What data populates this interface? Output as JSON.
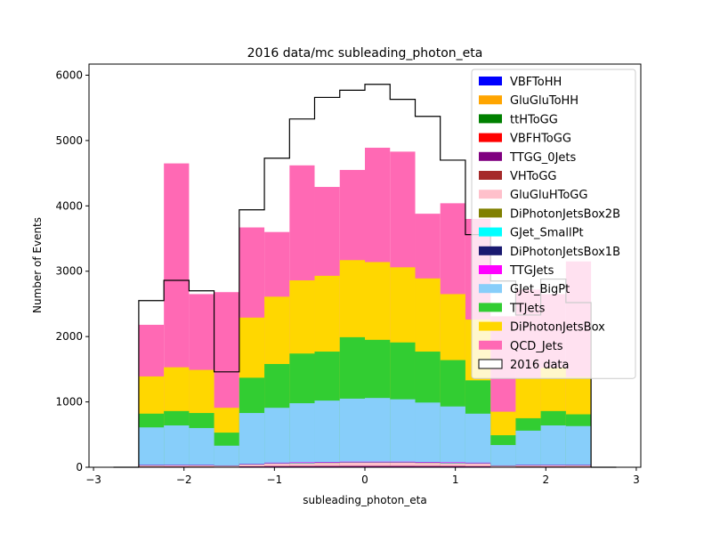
{
  "chart_data": {
    "type": "bar",
    "title": "2016 data/mc subleading_photon_eta",
    "xlabel": "subleading_photon_eta",
    "ylabel": "Number of Events",
    "xlim": [
      -3.05,
      3.05
    ],
    "ylim": [
      0,
      6170
    ],
    "x_ticks": [
      -3,
      -2,
      -1,
      0,
      1,
      2,
      3
    ],
    "x_tick_labels": [
      "−3",
      "−2",
      "−1",
      "0",
      "1",
      "2",
      "3"
    ],
    "y_ticks": [
      0,
      1000,
      2000,
      3000,
      4000,
      5000,
      6000
    ],
    "y_tick_labels": [
      "0",
      "1000",
      "2000",
      "3000",
      "4000",
      "5000",
      "6000"
    ],
    "bin_edges": [
      -2.5,
      -2.222,
      -1.944,
      -1.667,
      -1.389,
      -1.111,
      -0.833,
      -0.556,
      -0.278,
      0.0,
      0.278,
      0.556,
      0.833,
      1.111,
      1.389,
      1.667,
      1.944,
      2.222,
      2.5
    ],
    "legend_position": "upper right",
    "stacked_series_cumulative": true,
    "series": [
      {
        "name": "VBFToHH",
        "color": "#0000ff",
        "values": [
          0,
          0,
          0,
          0,
          0,
          0,
          0,
          0,
          0,
          0,
          0,
          0,
          0,
          0,
          0,
          0,
          0,
          0
        ]
      },
      {
        "name": "GluGluToHH",
        "color": "#ffa500",
        "values": [
          0,
          0,
          0,
          0,
          0,
          0,
          0,
          0,
          0,
          0,
          0,
          0,
          0,
          0,
          0,
          0,
          0,
          0
        ]
      },
      {
        "name": "ttHToGG",
        "color": "#008000",
        "values": [
          2,
          2,
          2,
          1,
          2,
          3,
          3,
          3,
          3,
          3,
          3,
          3,
          3,
          2,
          1,
          2,
          2,
          2
        ]
      },
      {
        "name": "VBFHToGG",
        "color": "#ff0000",
        "values": [
          3,
          3,
          3,
          2,
          3,
          4,
          4,
          4,
          4,
          4,
          4,
          4,
          4,
          3,
          2,
          3,
          3,
          3
        ]
      },
      {
        "name": "TTGG_0Jets",
        "color": "#800080",
        "values": [
          8,
          9,
          8,
          6,
          12,
          15,
          16,
          17,
          18,
          18,
          18,
          17,
          16,
          14,
          6,
          9,
          9,
          8
        ]
      },
      {
        "name": "VHToGG",
        "color": "#a52a2a",
        "values": [
          10,
          11,
          10,
          7,
          14,
          17,
          18,
          19,
          20,
          20,
          20,
          19,
          18,
          16,
          7,
          11,
          11,
          10
        ]
      },
      {
        "name": "GluGluHToGG",
        "color": "#ffc0cb",
        "values": [
          25,
          27,
          26,
          18,
          40,
          55,
          60,
          65,
          70,
          70,
          70,
          65,
          60,
          55,
          18,
          26,
          27,
          25
        ]
      },
      {
        "name": "DiPhotonJetsBox2B",
        "color": "#808000",
        "values": [
          26,
          28,
          27,
          19,
          41,
          56,
          61,
          66,
          71,
          71,
          71,
          66,
          61,
          56,
          19,
          27,
          28,
          26
        ]
      },
      {
        "name": "GJet_SmallPt",
        "color": "#00ffff",
        "values": [
          30,
          32,
          30,
          22,
          44,
          60,
          65,
          70,
          75,
          75,
          75,
          70,
          65,
          60,
          22,
          30,
          32,
          30
        ]
      },
      {
        "name": "DiPhotonJetsBox1B",
        "color": "#191970",
        "values": [
          32,
          34,
          32,
          24,
          46,
          62,
          67,
          72,
          77,
          77,
          77,
          72,
          67,
          62,
          24,
          32,
          34,
          32
        ]
      },
      {
        "name": "TTGJets",
        "color": "#ff00ff",
        "values": [
          38,
          40,
          38,
          28,
          52,
          70,
          75,
          80,
          85,
          85,
          85,
          80,
          75,
          70,
          28,
          38,
          40,
          38
        ]
      },
      {
        "name": "GJet_BigPt",
        "color": "#87cefa",
        "values": [
          610,
          640,
          600,
          330,
          830,
          910,
          980,
          1020,
          1050,
          1060,
          1040,
          990,
          930,
          820,
          340,
          560,
          640,
          630
        ]
      },
      {
        "name": "TTJets",
        "color": "#32cd32",
        "values": [
          820,
          860,
          830,
          530,
          1370,
          1580,
          1740,
          1770,
          1990,
          1950,
          1910,
          1770,
          1640,
          1330,
          490,
          750,
          860,
          810
        ]
      },
      {
        "name": "DiPhotonJetsBox",
        "color": "#ffd700",
        "values": [
          1390,
          1530,
          1490,
          910,
          2290,
          2610,
          2860,
          2930,
          3170,
          3140,
          3060,
          2890,
          2650,
          2260,
          850,
          1370,
          1520,
          1380
        ]
      },
      {
        "name": "QCD_Jets",
        "color": "#ff69b4",
        "values": [
          2180,
          4650,
          2650,
          2680,
          3670,
          3600,
          4620,
          4290,
          4550,
          4890,
          4830,
          3880,
          4040,
          3800,
          2310,
          2720,
          2650,
          3150
        ]
      }
    ],
    "data_series": {
      "name": "2016 data",
      "style": "step-outline",
      "color": "#000000",
      "values": [
        2550,
        2860,
        2700,
        1460,
        3940,
        4730,
        5330,
        5660,
        5770,
        5860,
        5630,
        5370,
        4700,
        3560,
        2850,
        2330,
        2880,
        2520
      ]
    }
  }
}
